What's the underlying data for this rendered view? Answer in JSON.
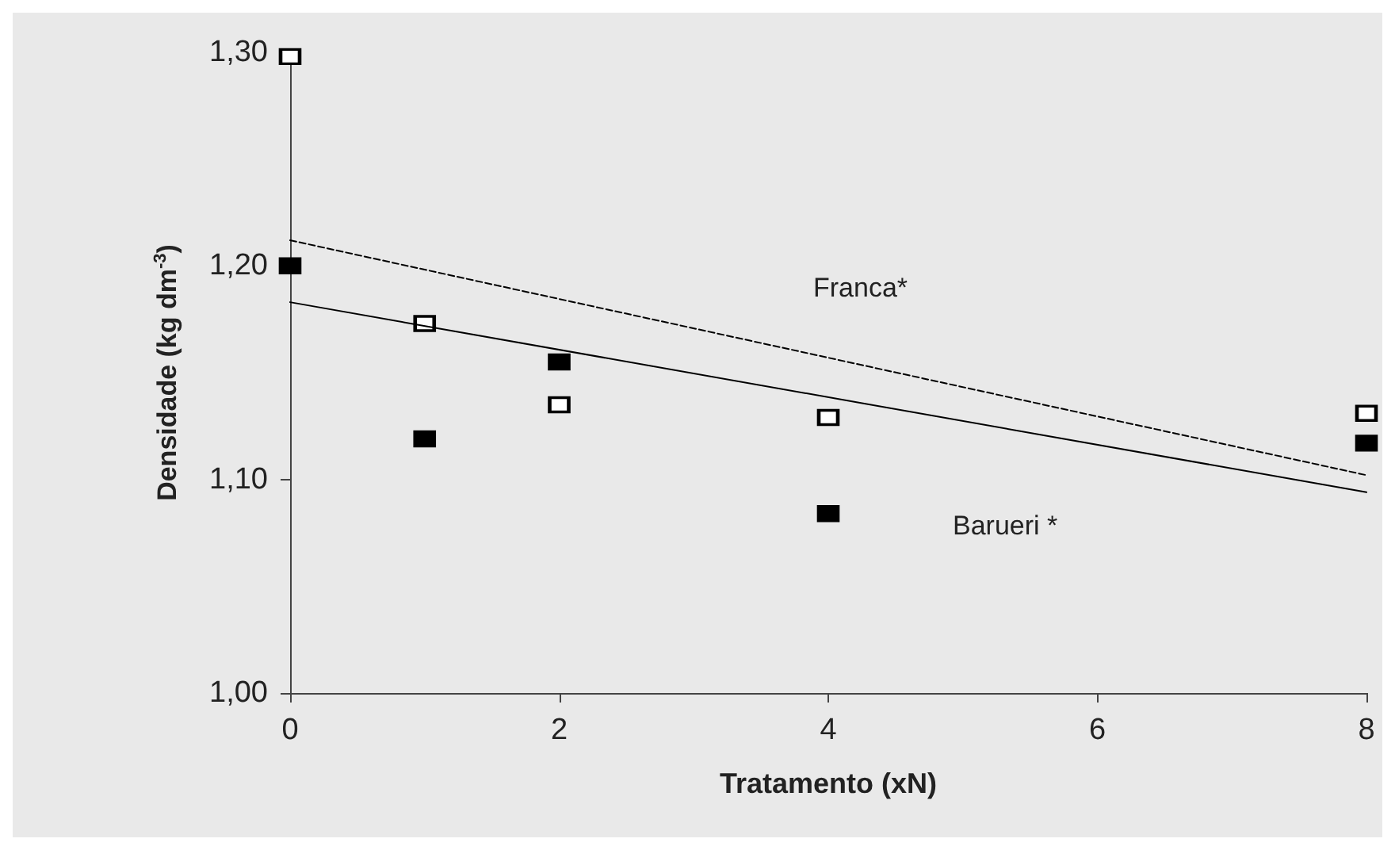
{
  "chart_data": {
    "type": "scatter",
    "xlabel": "Tratamento (xN)",
    "ylabel": "Densidade (kg dm$^{-3}$)",
    "xlim": [
      0,
      8
    ],
    "xticks": [
      0,
      2,
      4,
      6,
      8
    ],
    "ylim": [
      1.0,
      1.3
    ],
    "yticks": [
      {
        "value": 1.0,
        "label": "1,00"
      },
      {
        "value": 1.1,
        "label": "1,10"
      },
      {
        "value": 1.2,
        "label": "1,20"
      },
      {
        "value": 1.3,
        "label": "1,30"
      }
    ],
    "grid": false,
    "series": [
      {
        "marker": "square",
        "color": "#ffffff",
        "x": [
          0,
          1,
          2,
          4,
          8
        ],
        "values": [
          1.298,
          1.173,
          1.135,
          1.129,
          1.131
        ]
      },
      {
        "marker": "square",
        "color": "#000000",
        "x": [
          0,
          1,
          2,
          4,
          8
        ],
        "values": [
          1.2,
          1.119,
          1.155,
          1.084,
          1.117
        ]
      },
      {
        "type": "line",
        "marker": "none",
        "line_style": "dashed",
        "color": "#000000",
        "x": [
          0,
          8
        ],
        "values": [
          1.212,
          1.102
        ]
      },
      {
        "type": "line",
        "marker": "none",
        "line_style": "solid",
        "color": "#000000",
        "x": [
          0,
          8
        ],
        "values": [
          1.183,
          1.094
        ]
      }
    ],
    "annotations": [
      "Franca*",
      "Barueri *"
    ]
  }
}
